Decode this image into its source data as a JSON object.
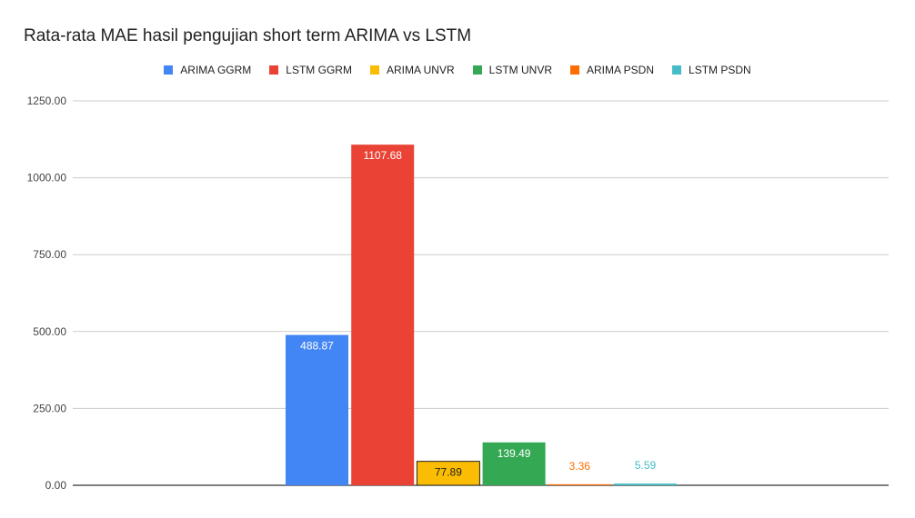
{
  "chart_data": {
    "type": "bar",
    "title": "Rata-rata MAE hasil pengujian short term ARIMA vs LSTM",
    "xlabel": "",
    "ylabel": "",
    "ylim": [
      0,
      1250
    ],
    "yticks": [
      "0.00",
      "250.00",
      "500.00",
      "750.00",
      "1000.00",
      "1250.00"
    ],
    "grid": true,
    "legend_position": "top",
    "series": [
      {
        "name": "ARIMA GGRM",
        "value": 488.87,
        "label": "488.87",
        "color": "#4285F4",
        "label_inside": true
      },
      {
        "name": "LSTM GGRM",
        "value": 1107.68,
        "label": "1107.68",
        "color": "#EA4335",
        "label_inside": true
      },
      {
        "name": "ARIMA UNVR",
        "value": 77.89,
        "label": "77.89",
        "color": "#FBBC04",
        "label_inside": true
      },
      {
        "name": "LSTM UNVR",
        "value": 139.49,
        "label": "139.49",
        "color": "#34A853",
        "label_inside": true
      },
      {
        "name": "ARIMA PSDN",
        "value": 3.36,
        "label": "3.36",
        "color": "#FF6D01",
        "label_inside": false
      },
      {
        "name": "LSTM PSDN",
        "value": 5.59,
        "label": "5.59",
        "color": "#46BDC6",
        "label_inside": false
      }
    ]
  }
}
